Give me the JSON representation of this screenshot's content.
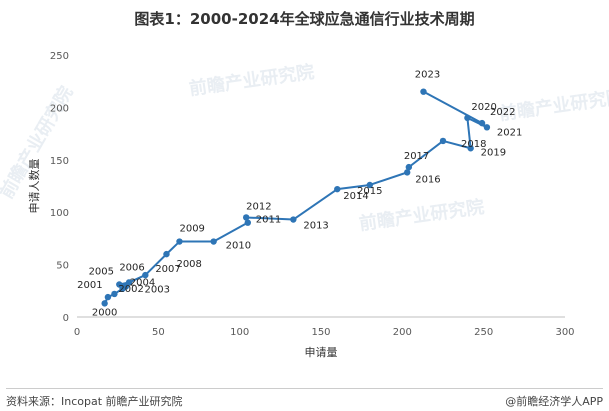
{
  "title": "图表1：2000-2024年全球应急通信行业技术周期",
  "footer": {
    "source": "资料来源：Incopat 前瞻产业研究院",
    "brand": "@前瞻经济学人APP"
  },
  "watermark": "前瞻产业研究院",
  "chart_data": {
    "type": "line",
    "xlabel": "申请量",
    "ylabel": "申请人数量",
    "xlim": [
      0,
      300
    ],
    "ylim": [
      0,
      250
    ],
    "xticks": [
      0,
      50,
      100,
      150,
      200,
      250,
      300
    ],
    "yticks": [
      0,
      50,
      100,
      150,
      200,
      250
    ],
    "grid": false,
    "color": "#2e75b6",
    "points": [
      {
        "label": "2000",
        "x": 17,
        "y": 13
      },
      {
        "label": "2001",
        "x": 19,
        "y": 19
      },
      {
        "label": "2002",
        "x": 23,
        "y": 22
      },
      {
        "label": "2003",
        "x": 28,
        "y": 27
      },
      {
        "label": "2004",
        "x": 30,
        "y": 29
      },
      {
        "label": "2005",
        "x": 26,
        "y": 31
      },
      {
        "label": "2006",
        "x": 32,
        "y": 33
      },
      {
        "label": "2007",
        "x": 42,
        "y": 40
      },
      {
        "label": "2008",
        "x": 55,
        "y": 60
      },
      {
        "label": "2009",
        "x": 63,
        "y": 72
      },
      {
        "label": "2010",
        "x": 84,
        "y": 72
      },
      {
        "label": "2011",
        "x": 105,
        "y": 90
      },
      {
        "label": "2012",
        "x": 104,
        "y": 95
      },
      {
        "label": "2013",
        "x": 133,
        "y": 93
      },
      {
        "label": "2014",
        "x": 160,
        "y": 122
      },
      {
        "label": "2015",
        "x": 180,
        "y": 126
      },
      {
        "label": "2016",
        "x": 203,
        "y": 138
      },
      {
        "label": "2017",
        "x": 204,
        "y": 143
      },
      {
        "label": "2018",
        "x": 225,
        "y": 168
      },
      {
        "label": "2019",
        "x": 242,
        "y": 161
      },
      {
        "label": "2020",
        "x": 240,
        "y": 190
      },
      {
        "label": "2021",
        "x": 252,
        "y": 181
      },
      {
        "label": "2022",
        "x": 249,
        "y": 185
      },
      {
        "label": "2023",
        "x": 213,
        "y": 215
      }
    ]
  }
}
